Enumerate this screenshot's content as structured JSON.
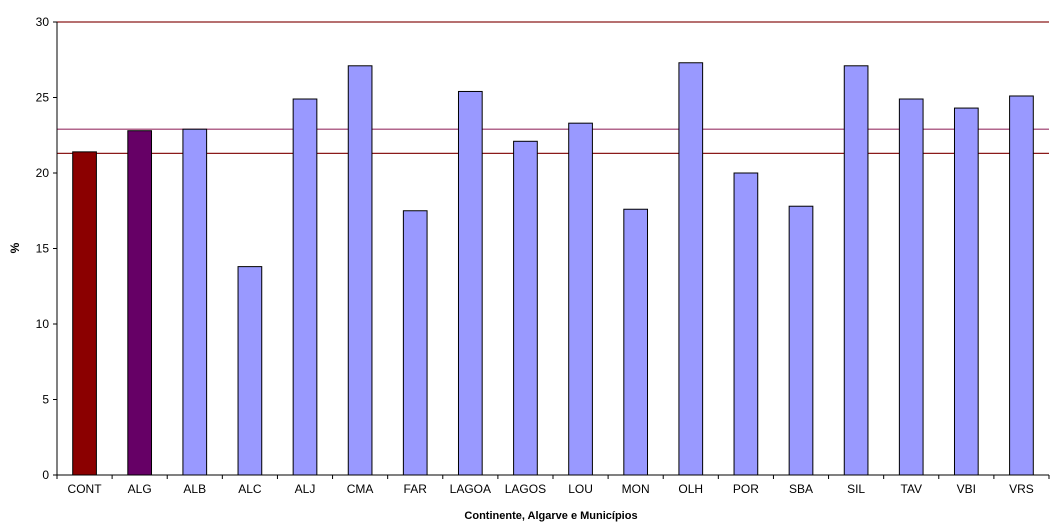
{
  "chart_data": {
    "type": "bar",
    "title": "",
    "xlabel": "Continente, Algarve e Municípios",
    "ylabel": "%",
    "ylim": [
      0,
      30
    ],
    "yticks": [
      "0",
      "5",
      "10",
      "15",
      "20",
      "25",
      "30"
    ],
    "grid": false,
    "categories": [
      "CONT",
      "ALG",
      "ALB",
      "ALC",
      "ALJ",
      "CMA",
      "FAR",
      "LAGOA",
      "LAGOS",
      "LOU",
      "MON",
      "OLH",
      "POR",
      "SBA",
      "SIL",
      "TAV",
      "VBI",
      "VRS"
    ],
    "values": [
      21.4,
      22.8,
      22.9,
      13.8,
      24.9,
      27.1,
      17.5,
      25.4,
      22.1,
      23.3,
      17.6,
      27.3,
      20.0,
      17.8,
      27.1,
      24.9,
      24.3,
      25.1
    ],
    "bar_colors": [
      "#8b0000",
      "#660066",
      "#9999ff",
      "#9999ff",
      "#9999ff",
      "#9999ff",
      "#9999ff",
      "#9999ff",
      "#9999ff",
      "#9999ff",
      "#9999ff",
      "#9999ff",
      "#9999ff",
      "#9999ff",
      "#9999ff",
      "#9999ff",
      "#9999ff",
      "#9999ff"
    ],
    "reference_lines": [
      {
        "value": 30,
        "color": "#8b1a1a"
      },
      {
        "value": 22.9,
        "color": "#993366"
      },
      {
        "value": 21.3,
        "color": "#8b1a1a"
      }
    ]
  }
}
